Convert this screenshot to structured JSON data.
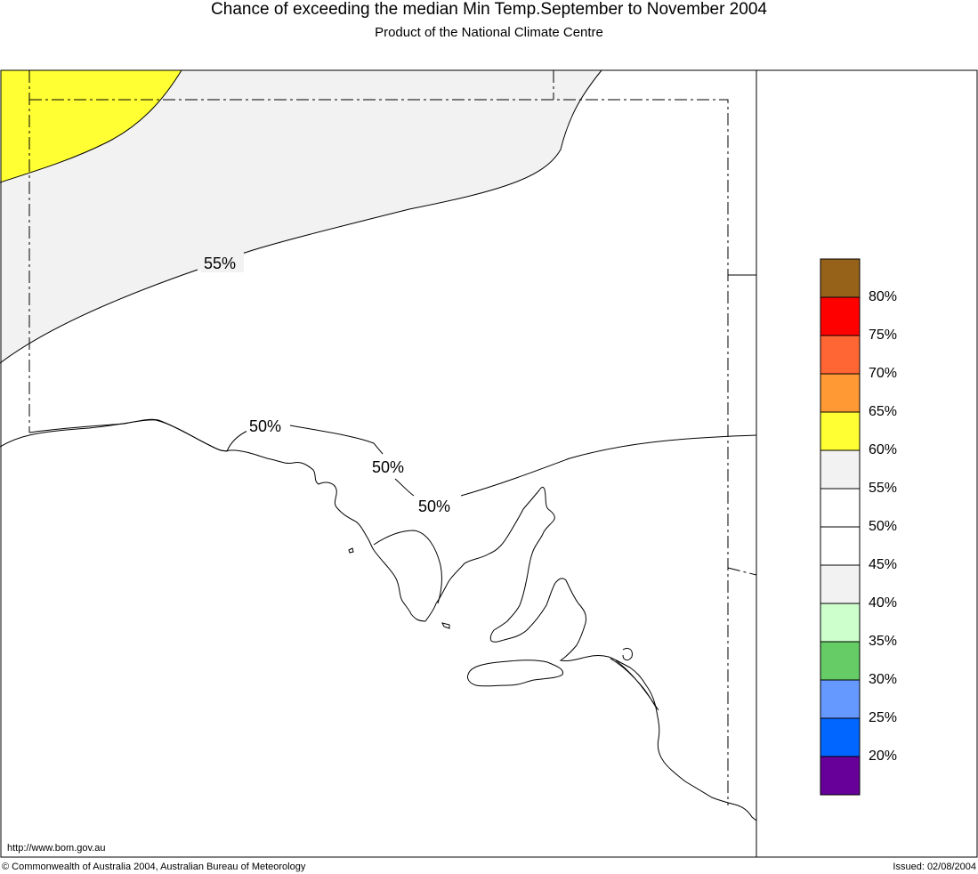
{
  "header": {
    "title": "Chance of exceeding the median Min Temp.September to November 2004",
    "subtitle": "Product of the National Climate Centre"
  },
  "map": {
    "contour_labels": [
      "55%",
      "50%",
      "50%",
      "50%"
    ],
    "colors": {
      "gt60": "#ffff33",
      "55_60": "#f2f2f2",
      "coast": "#000000"
    }
  },
  "legend": {
    "swatches": [
      {
        "color": "#966219"
      },
      {
        "color": "#ff0000"
      },
      {
        "color": "#ff6633"
      },
      {
        "color": "#ff9933"
      },
      {
        "color": "#ffff33"
      },
      {
        "color": "#f2f2f2"
      },
      {
        "color": "#ffffff"
      },
      {
        "color": "#ffffff"
      },
      {
        "color": "#f2f2f2"
      },
      {
        "color": "#ccffcc"
      },
      {
        "color": "#66cc66"
      },
      {
        "color": "#6699ff"
      },
      {
        "color": "#0066ff"
      },
      {
        "color": "#660099"
      }
    ],
    "labels": [
      "80%",
      "75%",
      "70%",
      "65%",
      "60%",
      "55%",
      "50%",
      "45%",
      "40%",
      "35%",
      "30%",
      "25%",
      "20%"
    ]
  },
  "footer": {
    "url": "http://www.bom.gov.au",
    "copyright": "© Commonwealth of Australia 2004, Australian Bureau of Meteorology",
    "issued": "Issued: 02/08/2004"
  }
}
